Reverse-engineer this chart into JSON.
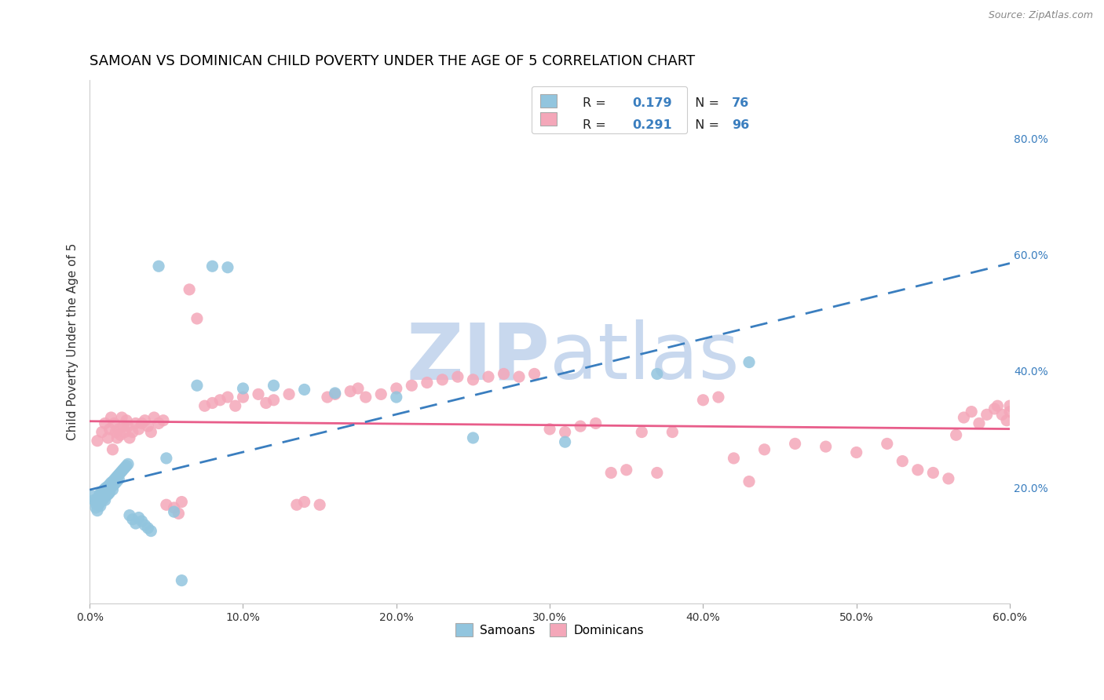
{
  "title": "SAMOAN VS DOMINICAN CHILD POVERTY UNDER THE AGE OF 5 CORRELATION CHART",
  "source": "Source: ZipAtlas.com",
  "ylabel": "Child Poverty Under the Age of 5",
  "xlim": [
    0.0,
    0.6
  ],
  "ylim": [
    0.0,
    0.9
  ],
  "xticks": [
    0.0,
    0.1,
    0.2,
    0.3,
    0.4,
    0.5,
    0.6
  ],
  "yticks_right": [
    0.2,
    0.4,
    0.6,
    0.8
  ],
  "legend_labels": [
    "Samoans",
    "Dominicans"
  ],
  "legend_r_samoan": "R = 0.179",
  "legend_n_samoan": "N = 76",
  "legend_r_dominican": "R = 0.291",
  "legend_n_dominican": "N = 96",
  "samoan_color": "#92c5de",
  "dominican_color": "#f4a7b9",
  "samoan_line_color": "#3a7ebf",
  "dominican_line_color": "#e85d8a",
  "watermark_color": "#d8e4f0",
  "background_color": "#ffffff",
  "grid_color": "#cccccc",
  "title_fontsize": 13,
  "samoan_x": [
    0.002,
    0.003,
    0.004,
    0.004,
    0.005,
    0.005,
    0.005,
    0.006,
    0.006,
    0.006,
    0.007,
    0.007,
    0.007,
    0.007,
    0.008,
    0.008,
    0.008,
    0.009,
    0.009,
    0.009,
    0.01,
    0.01,
    0.01,
    0.01,
    0.011,
    0.011,
    0.011,
    0.012,
    0.012,
    0.012,
    0.013,
    0.013,
    0.013,
    0.014,
    0.014,
    0.015,
    0.015,
    0.015,
    0.016,
    0.016,
    0.017,
    0.017,
    0.018,
    0.018,
    0.019,
    0.019,
    0.02,
    0.021,
    0.022,
    0.023,
    0.024,
    0.025,
    0.026,
    0.028,
    0.03,
    0.032,
    0.034,
    0.036,
    0.038,
    0.04,
    0.045,
    0.05,
    0.055,
    0.06,
    0.07,
    0.08,
    0.09,
    0.1,
    0.12,
    0.14,
    0.16,
    0.2,
    0.25,
    0.31,
    0.37,
    0.43
  ],
  "samoan_y": [
    0.185,
    0.178,
    0.172,
    0.165,
    0.18,
    0.175,
    0.16,
    0.185,
    0.178,
    0.17,
    0.19,
    0.183,
    0.175,
    0.168,
    0.192,
    0.185,
    0.178,
    0.195,
    0.188,
    0.18,
    0.198,
    0.192,
    0.185,
    0.178,
    0.2,
    0.193,
    0.186,
    0.202,
    0.195,
    0.188,
    0.205,
    0.198,
    0.191,
    0.208,
    0.2,
    0.21,
    0.203,
    0.196,
    0.213,
    0.205,
    0.216,
    0.208,
    0.219,
    0.211,
    0.222,
    0.214,
    0.225,
    0.228,
    0.231,
    0.234,
    0.237,
    0.24,
    0.152,
    0.145,
    0.138,
    0.148,
    0.142,
    0.135,
    0.13,
    0.125,
    0.58,
    0.25,
    0.158,
    0.04,
    0.375,
    0.58,
    0.578,
    0.37,
    0.375,
    0.368,
    0.362,
    0.355,
    0.285,
    0.278,
    0.395,
    0.415
  ],
  "dominican_x": [
    0.005,
    0.008,
    0.01,
    0.012,
    0.013,
    0.014,
    0.015,
    0.016,
    0.017,
    0.018,
    0.019,
    0.02,
    0.021,
    0.022,
    0.023,
    0.024,
    0.025,
    0.026,
    0.028,
    0.03,
    0.032,
    0.034,
    0.036,
    0.038,
    0.04,
    0.042,
    0.045,
    0.048,
    0.05,
    0.055,
    0.058,
    0.06,
    0.065,
    0.07,
    0.075,
    0.08,
    0.085,
    0.09,
    0.095,
    0.1,
    0.11,
    0.115,
    0.12,
    0.13,
    0.135,
    0.14,
    0.15,
    0.155,
    0.16,
    0.17,
    0.175,
    0.18,
    0.19,
    0.2,
    0.21,
    0.22,
    0.23,
    0.24,
    0.25,
    0.26,
    0.27,
    0.28,
    0.29,
    0.3,
    0.31,
    0.32,
    0.33,
    0.34,
    0.35,
    0.36,
    0.37,
    0.38,
    0.4,
    0.41,
    0.42,
    0.43,
    0.44,
    0.46,
    0.48,
    0.5,
    0.52,
    0.53,
    0.54,
    0.55,
    0.56,
    0.565,
    0.57,
    0.575,
    0.58,
    0.585,
    0.59,
    0.592,
    0.595,
    0.598,
    0.6,
    0.6
  ],
  "dominican_y": [
    0.28,
    0.295,
    0.31,
    0.285,
    0.3,
    0.32,
    0.265,
    0.31,
    0.295,
    0.285,
    0.3,
    0.29,
    0.32,
    0.305,
    0.295,
    0.315,
    0.305,
    0.285,
    0.295,
    0.31,
    0.3,
    0.31,
    0.315,
    0.305,
    0.295,
    0.32,
    0.31,
    0.315,
    0.17,
    0.165,
    0.155,
    0.175,
    0.54,
    0.49,
    0.34,
    0.345,
    0.35,
    0.355,
    0.34,
    0.355,
    0.36,
    0.345,
    0.35,
    0.36,
    0.17,
    0.175,
    0.17,
    0.355,
    0.36,
    0.365,
    0.37,
    0.355,
    0.36,
    0.37,
    0.375,
    0.38,
    0.385,
    0.39,
    0.385,
    0.39,
    0.395,
    0.39,
    0.395,
    0.3,
    0.295,
    0.305,
    0.31,
    0.225,
    0.23,
    0.295,
    0.225,
    0.295,
    0.35,
    0.355,
    0.25,
    0.21,
    0.265,
    0.275,
    0.27,
    0.26,
    0.275,
    0.245,
    0.23,
    0.225,
    0.215,
    0.29,
    0.32,
    0.33,
    0.31,
    0.325,
    0.335,
    0.34,
    0.325,
    0.315,
    0.34,
    0.33
  ]
}
